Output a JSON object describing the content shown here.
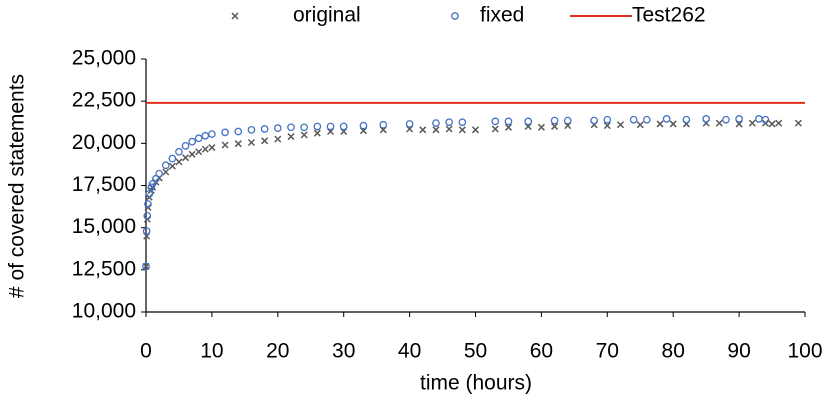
{
  "chart_data": {
    "type": "scatter",
    "x_label": "time (hours)",
    "y_label": "# of covered statements",
    "xlim": [
      0,
      100
    ],
    "xticks": [
      0,
      10,
      20,
      30,
      40,
      50,
      60,
      70,
      80,
      90,
      100
    ],
    "ylim": [
      10000,
      25000
    ],
    "yticks": [
      {
        "value": 10000,
        "label": "10,000"
      },
      {
        "value": 12500,
        "label": "12,500"
      },
      {
        "value": 15000,
        "label": "15,000"
      },
      {
        "value": 17500,
        "label": "17,500"
      },
      {
        "value": 20000,
        "label": "20,000"
      },
      {
        "value": 22500,
        "label": "22,500"
      },
      {
        "value": 25000,
        "label": "25,000"
      }
    ],
    "series": [
      {
        "name": "original",
        "color": "#595959",
        "marker": "x",
        "x": [
          0,
          0.1,
          0.2,
          0.3,
          0.5,
          0.8,
          1,
          1.5,
          2,
          3,
          4,
          5,
          6,
          7,
          8,
          9,
          10,
          12,
          14,
          16,
          18,
          20,
          22,
          24,
          26,
          28,
          30,
          33,
          36,
          40,
          42,
          44,
          46,
          48,
          50,
          53,
          55,
          58,
          60,
          62,
          64,
          68,
          70,
          72,
          75,
          78,
          80,
          82,
          85,
          87,
          90,
          92,
          94,
          95,
          96,
          99
        ],
        "values": [
          12700,
          14500,
          15500,
          16200,
          16800,
          17200,
          17400,
          17700,
          17950,
          18300,
          18650,
          18900,
          19150,
          19350,
          19500,
          19650,
          19750,
          19900,
          19980,
          20050,
          20150,
          20250,
          20400,
          20500,
          20600,
          20700,
          20700,
          20750,
          20800,
          20850,
          20800,
          20800,
          20850,
          20800,
          20800,
          20850,
          20950,
          21000,
          20950,
          21000,
          21050,
          21100,
          21050,
          21100,
          21100,
          21150,
          21150,
          21150,
          21200,
          21200,
          21150,
          21200,
          21200,
          21150,
          21200,
          21200
        ]
      },
      {
        "name": "fixed",
        "color": "#4472c4",
        "marker": "o",
        "x": [
          0,
          0.1,
          0.2,
          0.3,
          0.5,
          0.8,
          1,
          1.5,
          2,
          3,
          4,
          5,
          6,
          7,
          8,
          9,
          10,
          12,
          14,
          16,
          18,
          20,
          22,
          24,
          26,
          28,
          30,
          33,
          36,
          40,
          44,
          46,
          48,
          53,
          55,
          58,
          62,
          64,
          68,
          70,
          74,
          76,
          79,
          82,
          85,
          88,
          90,
          93,
          94
        ],
        "values": [
          12700,
          14800,
          15700,
          16400,
          17000,
          17400,
          17600,
          17900,
          18200,
          18700,
          19100,
          19500,
          19850,
          20100,
          20300,
          20450,
          20550,
          20650,
          20700,
          20800,
          20850,
          20900,
          20950,
          20950,
          21000,
          21000,
          21000,
          21050,
          21100,
          21150,
          21200,
          21250,
          21250,
          21300,
          21300,
          21300,
          21350,
          21350,
          21350,
          21400,
          21400,
          21400,
          21450,
          21400,
          21450,
          21400,
          21450,
          21450,
          21400
        ]
      },
      {
        "name": "Test262",
        "color": "#e0301e",
        "marker": "hline",
        "values": [
          22400
        ]
      }
    ]
  }
}
